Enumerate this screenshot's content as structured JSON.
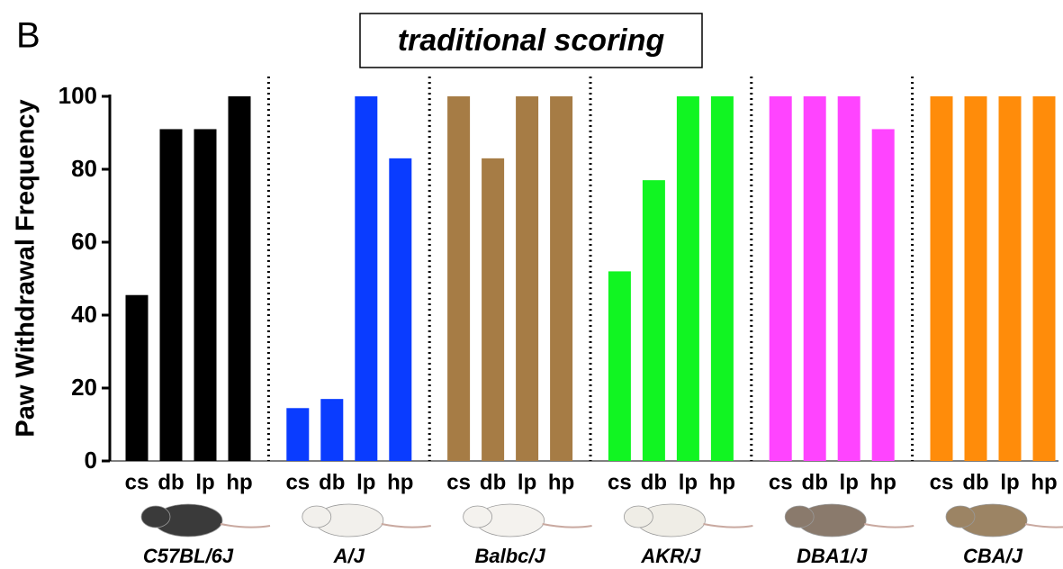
{
  "chart_data": {
    "type": "bar",
    "panel_label": "B",
    "title": "traditional scoring",
    "y_label": "Paw Withdrawal Frequency",
    "ylim": [
      0,
      100
    ],
    "yticks": [
      0,
      20,
      40,
      60,
      80,
      100
    ],
    "groups": [
      {
        "name": "C57BL/6J",
        "color": "#000000",
        "categories": [
          "cs",
          "db",
          "lp",
          "hp"
        ],
        "values": [
          45.5,
          91,
          91,
          100
        ]
      },
      {
        "name": "A/J",
        "color": "#0a3cff",
        "categories": [
          "cs",
          "db",
          "lp",
          "hp"
        ],
        "values": [
          14.5,
          17,
          100,
          83
        ]
      },
      {
        "name": "Balbc/J",
        "color": "#a67c45",
        "categories": [
          "cs",
          "db",
          "lp",
          "hp"
        ],
        "values": [
          100,
          83,
          100,
          100
        ]
      },
      {
        "name": "AKR/J",
        "color": "#11f522",
        "categories": [
          "cs",
          "db",
          "lp",
          "hp"
        ],
        "values": [
          52,
          77,
          100,
          100
        ]
      },
      {
        "name": "DBA1/J",
        "color": "#ff44ff",
        "categories": [
          "cs",
          "db",
          "lp",
          "hp"
        ],
        "values": [
          100,
          100,
          100,
          91
        ]
      },
      {
        "name": "CBA/J",
        "color": "#ff8c0a",
        "categories": [
          "cs",
          "db",
          "lp",
          "hp"
        ],
        "values": [
          100,
          100,
          100,
          100
        ]
      }
    ]
  }
}
